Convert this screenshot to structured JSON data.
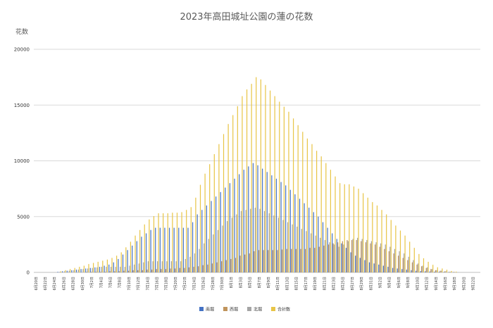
{
  "chart_data": {
    "type": "bar",
    "title": "2023年高田城址公園の蓮の花数",
    "ylabel": "花数",
    "xlabel": "",
    "ylim": [
      0,
      20000
    ],
    "yticks": [
      0,
      5000,
      10000,
      15000,
      20000
    ],
    "grid": true,
    "legend_position": "bottom",
    "colors": {
      "南堀": "#4472c4",
      "西堀": "#c0945c",
      "北堀": "#a5a5a5",
      "合計数": "#e8c547"
    },
    "categories": [
      "6月20日",
      "6月21日",
      "6月22日",
      "6月23日",
      "6月24日",
      "6月25日",
      "6月26日",
      "6月27日",
      "6月28日",
      "6月29日",
      "6月30日",
      "7月1日",
      "7月2日",
      "7月3日",
      "7月4日",
      "7月5日",
      "7月6日",
      "7月7日",
      "7月8日",
      "7月9日",
      "7月10日",
      "7月11日",
      "7月12日",
      "7月13日",
      "7月14日",
      "7月15日",
      "7月16日",
      "7月17日",
      "7月18日",
      "7月19日",
      "7月20日",
      "7月21日",
      "7月22日",
      "7月23日",
      "7月24日",
      "7月25日",
      "7月26日",
      "7月27日",
      "7月28日",
      "7月29日",
      "7月30日",
      "7月31日",
      "8月1日",
      "8月2日",
      "8月3日",
      "8月4日",
      "8月5日",
      "8月6日",
      "8月7日",
      "8月8日",
      "8月9日",
      "8月10日",
      "8月11日",
      "8月12日",
      "8月13日",
      "8月14日",
      "8月15日",
      "8月16日",
      "8月17日",
      "8月18日",
      "8月19日",
      "8月20日",
      "8月21日",
      "8月22日",
      "8月23日",
      "8月24日",
      "8月25日",
      "8月26日",
      "8月27日",
      "8月28日",
      "8月29日",
      "8月30日",
      "8月31日",
      "9月1日",
      "9月2日",
      "9月3日",
      "9月4日",
      "9月5日",
      "9月6日",
      "9月7日",
      "9月8日",
      "9月9日",
      "9月10日",
      "9月11日",
      "9月12日",
      "9月13日",
      "9月14日",
      "9月15日",
      "9月16日",
      "9月17日",
      "9月18日",
      "9月19日",
      "9月20日",
      "9月21日",
      "9月22日",
      "9月23日"
    ],
    "xtick_labels": [
      "6月20日",
      "6月22日",
      "6月24日",
      "6月26日",
      "6月28日",
      "6月30日",
      "7月2日",
      "7月4日",
      "7月6日",
      "7月8日",
      "7月10日",
      "7月12日",
      "7月14日",
      "7月16日",
      "7月18日",
      "7月20日",
      "7月22日",
      "7月24日",
      "7月26日",
      "7月28日",
      "7月30日",
      "8月1日",
      "8月3日",
      "8月5日",
      "8月7日",
      "8月9日",
      "8月11日",
      "8月13日",
      "8月15日",
      "8月17日",
      "8月19日",
      "8月21日",
      "8月23日",
      "8月25日",
      "8月27日",
      "8月29日",
      "8月31日",
      "9月2日",
      "9月4日",
      "9月6日",
      "9月8日",
      "9月10日",
      "9月12日",
      "9月14日",
      "9月16日",
      "9月18日",
      "9月20日",
      "9月22日"
    ],
    "series": [
      {
        "name": "南堀",
        "values": [
          0,
          0,
          0,
          0,
          0,
          50,
          100,
          150,
          200,
          250,
          300,
          350,
          400,
          450,
          500,
          600,
          700,
          900,
          1200,
          1600,
          2000,
          2400,
          2800,
          3200,
          3500,
          3800,
          4000,
          4000,
          4000,
          4000,
          4000,
          4000,
          4000,
          4000,
          4500,
          5200,
          5600,
          6000,
          6400,
          6800,
          7200,
          7600,
          8000,
          8400,
          8800,
          9200,
          9500,
          9800,
          9600,
          9300,
          9000,
          8700,
          8400,
          8100,
          7800,
          7400,
          7000,
          6600,
          6200,
          5800,
          5400,
          5000,
          4500,
          4000,
          3500,
          3000,
          2600,
          2200,
          1800,
          1500,
          1300,
          1100,
          900,
          800,
          700,
          600,
          500,
          400,
          350,
          300,
          250,
          200,
          150,
          120,
          100,
          80,
          60,
          50,
          40,
          30,
          20,
          10,
          0,
          0,
          0,
          0
        ]
      },
      {
        "name": "西堀",
        "values": [
          0,
          0,
          0,
          0,
          0,
          0,
          0,
          0,
          0,
          0,
          0,
          50,
          50,
          50,
          50,
          50,
          100,
          100,
          100,
          150,
          150,
          200,
          200,
          200,
          250,
          250,
          300,
          300,
          300,
          350,
          350,
          400,
          400,
          450,
          500,
          550,
          650,
          700,
          800,
          900,
          1000,
          1100,
          1200,
          1300,
          1500,
          1600,
          1700,
          1900,
          2000,
          2000,
          2000,
          2000,
          2000,
          2050,
          2100,
          2100,
          2100,
          2100,
          2100,
          2200,
          2200,
          2300,
          2400,
          2500,
          2600,
          2700,
          2800,
          2900,
          2900,
          2900,
          2800,
          2700,
          2600,
          2500,
          2300,
          2100,
          1900,
          1700,
          1500,
          1300,
          1100,
          900,
          700,
          550,
          400,
          300,
          200,
          150,
          100,
          50,
          50,
          0,
          0,
          0,
          0,
          0
        ]
      },
      {
        "name": "北堀",
        "values": [
          0,
          0,
          0,
          0,
          0,
          50,
          100,
          150,
          200,
          250,
          300,
          350,
          400,
          450,
          500,
          500,
          500,
          500,
          500,
          500,
          600,
          700,
          800,
          900,
          1000,
          1000,
          1000,
          1000,
          1000,
          1000,
          1000,
          1000,
          1200,
          1400,
          1700,
          2100,
          2600,
          3000,
          3400,
          3800,
          4200,
          4600,
          4900,
          5200,
          5500,
          5600,
          5700,
          5800,
          5700,
          5500,
          5300,
          5100,
          4900,
          4700,
          4500,
          4300,
          4100,
          3900,
          3700,
          3500,
          3300,
          3100,
          2900,
          2700,
          2500,
          2300,
          2500,
          2800,
          3000,
          3100,
          3000,
          2900,
          2800,
          2700,
          2600,
          2500,
          2300,
          2100,
          1900,
          1700,
          1400,
          1100,
          800,
          600,
          450,
          300,
          200,
          150,
          100,
          50,
          0,
          0,
          0,
          0,
          0,
          0
        ]
      },
      {
        "name": "合計数",
        "values": [
          0,
          0,
          0,
          0,
          0,
          100,
          200,
          300,
          400,
          500,
          600,
          750,
          850,
          950,
          1050,
          1150,
          1300,
          1500,
          1800,
          2250,
          2750,
          3300,
          3800,
          4300,
          4750,
          5050,
          5300,
          5300,
          5300,
          5350,
          5350,
          5400,
          5600,
          5850,
          6700,
          7850,
          8850,
          9700,
          10600,
          11500,
          12400,
          13300,
          14100,
          14900,
          15800,
          16400,
          16900,
          17500,
          17300,
          16800,
          16300,
          15800,
          15300,
          14850,
          14400,
          13800,
          13200,
          12600,
          12000,
          11500,
          10900,
          10400,
          9800,
          9200,
          8600,
          8000,
          7900,
          7900,
          7700,
          7500,
          7100,
          6700,
          6300,
          6000,
          5600,
          5200,
          4700,
          4200,
          3750,
          3300,
          2750,
          2200,
          1650,
          1270,
          950,
          680,
          460,
          350,
          240,
          130,
          70,
          0,
          0,
          0,
          0,
          0
        ]
      }
    ]
  }
}
